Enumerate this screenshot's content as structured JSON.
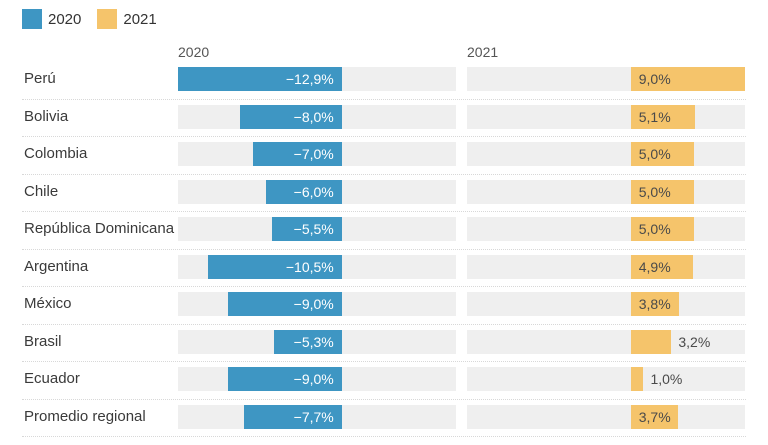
{
  "chart_data": {
    "type": "bar",
    "variant": "split-rows-diverging-horizontal-bars",
    "title": "",
    "legend_position": "top-left",
    "grid": "dotted-row-separators",
    "column_headers": [
      "2020",
      "2021"
    ],
    "legend": [
      {
        "label": "2020",
        "color": "#3e96c3"
      },
      {
        "label": "2021",
        "color": "#f5c46b"
      }
    ],
    "categories": [
      "Perú",
      "Bolivia",
      "Colombia",
      "Chile",
      "República Dominicana",
      "Argentina",
      "México",
      "Brasil",
      "Ecuador",
      "Promedio regional"
    ],
    "series": [
      {
        "name": "2020",
        "color": "#3e96c3",
        "values": [
          -12.9,
          -8.0,
          -7.0,
          -6.0,
          -5.5,
          -10.5,
          -9.0,
          -5.3,
          -9.0,
          -7.7
        ],
        "labels": [
          "−12,9%",
          "−8,0%",
          "−7,0%",
          "−6,0%",
          "−5,5%",
          "−10,5%",
          "−9,0%",
          "−5,3%",
          "−9,0%",
          "−7,7%"
        ],
        "label_color": "#ffffff"
      },
      {
        "name": "2021",
        "color": "#f5c46b",
        "values": [
          9.0,
          5.1,
          5.0,
          5.0,
          5.0,
          4.9,
          3.8,
          3.2,
          1.0,
          3.7
        ],
        "labels": [
          "9,0%",
          "5,1%",
          "5,0%",
          "5,0%",
          "5,0%",
          "4,9%",
          "3,8%",
          "3,2%",
          "1,0%",
          "3,7%"
        ],
        "label_color": "#4a4a4a"
      }
    ],
    "axis": {
      "min": -12.9,
      "max": 9.0,
      "unit": "%"
    },
    "track_color": "#efefef"
  }
}
